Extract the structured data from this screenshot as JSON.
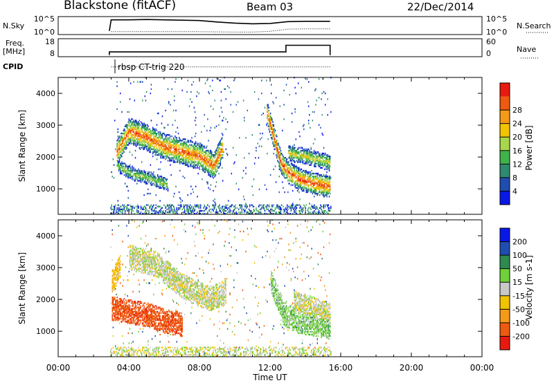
{
  "header": {
    "station": "Blackstone (fitACF)",
    "beam": "Beam 03",
    "date": "22/Dec/2014"
  },
  "colors": {
    "power_scale": [
      "#0a18e6",
      "#1f4db0",
      "#2f8a70",
      "#3fb34a",
      "#a8d64a",
      "#f2c400",
      "#f59a18",
      "#ee5a10",
      "#e81a10"
    ],
    "velocity_scale": [
      "#e81a10",
      "#ee5a10",
      "#f59a18",
      "#f2c400",
      "#c8c8c8",
      "#6fd23a",
      "#2f8a50",
      "#1f4db0",
      "#0a18e6"
    ]
  },
  "chart_data": [
    {
      "type": "line",
      "panel": "N.Sky / N.Search",
      "left_label": "N.Sky",
      "right_label": "N.Search",
      "left_ticks": [
        "10^5",
        "10^0"
      ],
      "right_ticks": [
        "10^5",
        "10^0"
      ],
      "series": [
        {
          "style": "solid",
          "x": [
            2.9,
            3.0,
            4.0,
            5.0,
            6.0,
            7.0,
            8.0,
            9.0,
            10.0,
            11.0,
            12.0,
            13.0,
            14.0,
            15.4
          ],
          "y": [
            0.2,
            0.82,
            0.82,
            0.84,
            0.82,
            0.8,
            0.78,
            0.7,
            0.64,
            0.6,
            0.62,
            0.72,
            0.74,
            0.74
          ]
        },
        {
          "style": "dotted",
          "x": [
            3.0,
            4.0,
            6.0,
            8.0,
            10.0,
            11.0,
            12.0,
            13.0,
            14.0,
            15.4
          ],
          "y": [
            0.16,
            0.16,
            0.16,
            0.16,
            0.14,
            0.14,
            0.18,
            0.3,
            0.32,
            0.32
          ]
        }
      ]
    },
    {
      "type": "line",
      "panel": "Freq / Nave",
      "left_label_1": "Freq.",
      "left_label_2": "[MHz]",
      "right_label": "Nave",
      "left_ticks": [
        "18",
        "8"
      ],
      "right_ticks": [
        "60",
        "0"
      ],
      "series": [
        {
          "style": "solid",
          "x": [
            2.9,
            2.9,
            12.9,
            12.9,
            15.4,
            15.4
          ],
          "y": [
            8,
            10.2,
            10.2,
            14.6,
            14.6,
            8
          ]
        },
        {
          "style": "dotted",
          "x": [
            3.0,
            15.4
          ],
          "y": [
            0.2,
            0.2
          ]
        }
      ]
    },
    {
      "type": "heatmap",
      "panel": "Power",
      "cpid_label": "CPID",
      "cpid_value": "rbsp CT-trig 220",
      "ylabel": "Slant Range [km]",
      "ylim": [
        200,
        4500
      ],
      "yticks": [
        "1000",
        "2000",
        "3000",
        "4000"
      ],
      "colorbar_label": "Power [dB]",
      "colorbar_ticks": [
        "4",
        "8",
        "12",
        "16",
        "20",
        "24",
        "28"
      ],
      "bands": [
        {
          "x": [
            3.3,
            4.0,
            5.0,
            6.0,
            7.0,
            8.0,
            8.8,
            9.3
          ],
          "range": [
            2100,
            2800,
            2600,
            2300,
            2150,
            2000,
            1700,
            2300
          ],
          "width": 420,
          "peak": 0.9
        },
        {
          "x": [
            3.3,
            4.2,
            5.2,
            6.2
          ],
          "range": [
            1700,
            1450,
            1300,
            1100
          ],
          "width": 200,
          "peak": 0.5
        },
        {
          "x": [
            11.8,
            12.2,
            12.6,
            13.0,
            13.6,
            14.4,
            15.4
          ],
          "range": [
            3400,
            2600,
            1800,
            1500,
            1300,
            1150,
            1050
          ],
          "width": 350,
          "peak": 0.95
        },
        {
          "x": [
            13.0,
            14.0,
            15.4
          ],
          "range": [
            2100,
            2000,
            1800
          ],
          "width": 250,
          "peak": 0.6
        }
      ]
    },
    {
      "type": "heatmap",
      "panel": "Velocity",
      "ylabel": "Slant Range [km]",
      "ylim": [
        200,
        4500
      ],
      "yticks": [
        "1000",
        "2000",
        "3000",
        "4000"
      ],
      "colorbar_label": "Velocity [m s-1]",
      "colorbar_ticks": [
        "200",
        "100",
        "50",
        "15",
        "-15",
        "-50",
        "-100",
        "-200"
      ],
      "xlabel": "Time UT",
      "xlim": [
        0,
        24
      ],
      "xticks": [
        "00:00",
        "04:00",
        "08:00",
        "12:00",
        "16:00",
        "20:00",
        "00:00"
      ],
      "bands": [
        {
          "x": [
            3.0,
            4.0,
            5.0,
            6.0,
            7.0
          ],
          "range": [
            1700,
            1600,
            1500,
            1300,
            1200
          ],
          "width": 380,
          "vel": -180
        },
        {
          "x": [
            3.0,
            3.5
          ],
          "range": [
            2500,
            3000
          ],
          "width": 400,
          "vel": -40
        },
        {
          "x": [
            4.0,
            5.5,
            7.0,
            8.5,
            9.5
          ],
          "range": [
            3300,
            3100,
            2400,
            2000,
            2200
          ],
          "width": 400,
          "vel": 0
        },
        {
          "x": [
            12.0,
            12.8,
            13.5,
            14.5,
            15.4
          ],
          "range": [
            2600,
            1500,
            1300,
            1200,
            1100
          ],
          "width": 380,
          "vel": 30
        },
        {
          "x": [
            13.3,
            14.5,
            15.4
          ],
          "range": [
            1900,
            1700,
            1500
          ],
          "width": 350,
          "vel": 0
        }
      ]
    }
  ]
}
